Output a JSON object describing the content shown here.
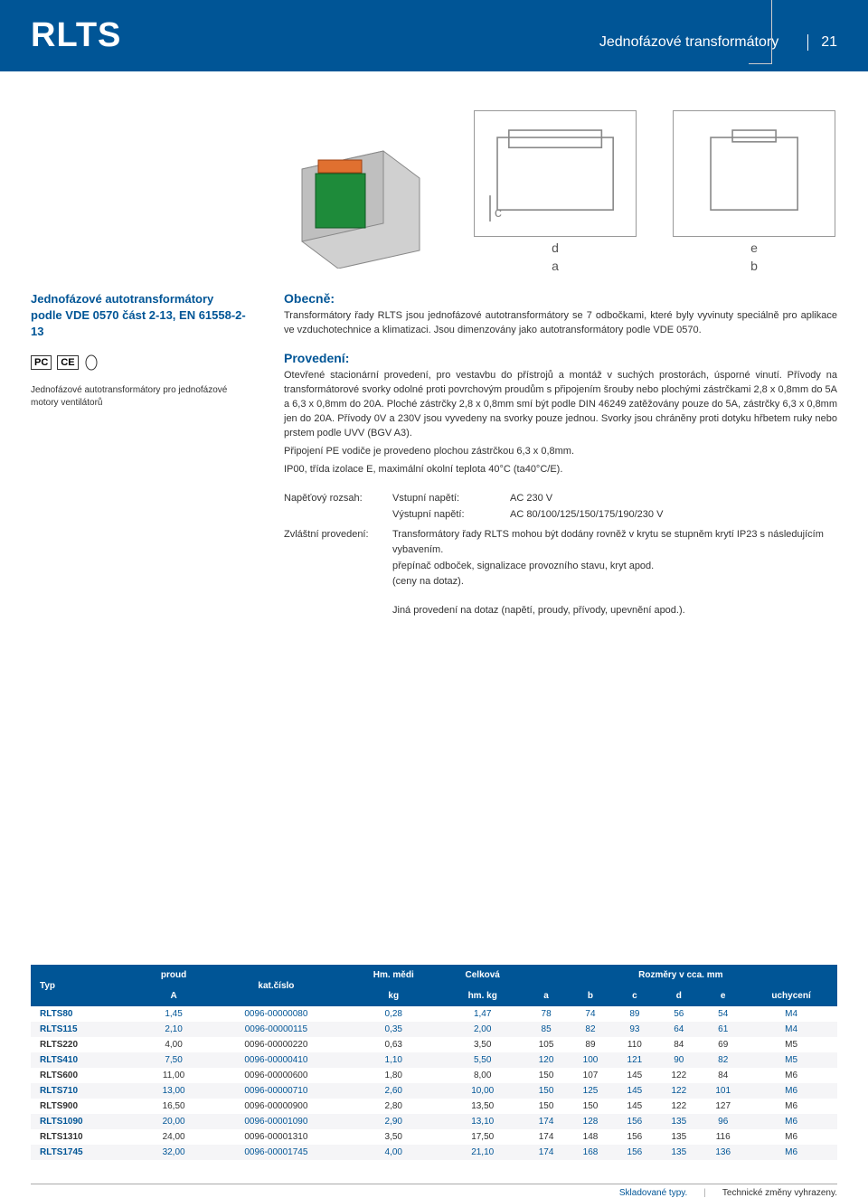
{
  "header": {
    "title": "RLTS",
    "subtitle": "Jednofázové transformátory",
    "pagenum": "21"
  },
  "left": {
    "title_line1": "Jednofázové autotransformátory",
    "title_line2": "podle VDE 0570 část 2-13, EN 61558-2-13",
    "cert_labels": [
      "PC",
      "CE"
    ],
    "desc": "Jednofázové autotransformátory pro jednofázové motory ventilátorů"
  },
  "diagram": {
    "labels_ab": [
      "d",
      "a"
    ],
    "labels_eb": [
      "e",
      "b"
    ]
  },
  "body": {
    "general_head": "Obecně:",
    "general_text": "Transformátory řady RLTS jsou jednofázové autotransformátory se 7 odbočkami, které byly vyvinuty speciálně pro aplikace ve vzduchotechnice a klimatizaci. Jsou dimenzovány jako autotransformátory podle VDE 0570.",
    "design_head": "Provedení:",
    "design_text": "Otevřené stacionární provedení, pro vestavbu do přístrojů a montáž v suchých prostorách, úsporné vinutí. Přívody na transformátorové svorky odolné proti povrchovým proudům s připojením šrouby nebo plochými zástrčkami 2,8 x 0,8mm do 5A a 6,3 x 0,8mm do 20A. Ploché zástrčky 2,8 x 0,8mm smí být podle DIN 46249 zatěžovány pouze do 5A, zástrčky 6,3 x 0,8mm jen do 20A. Přívody 0V a 230V jsou vyvedeny na svorky pouze jednou. Svorky jsou chráněny proti dotyku hřbetem ruky nebo prstem podle UVV (BGV A3).",
    "pe_text": "Připojení PE vodiče je provedeno plochou zástrčkou 6,3 x 0,8mm.",
    "ip_text": "IP00, třída izolace E, maximální okolní teplota 40°C (ta40°C/E).",
    "voltage_range_label": "Napěťový rozsah:",
    "input_label": "Vstupní napětí:",
    "input_value": "AC 230 V",
    "output_label": "Výstupní napětí:",
    "output_value": "AC 80/100/125/150/175/190/230 V",
    "special_label": "Zvláštní provedení:",
    "special_text": "Transformátory řady RLTS mohou být dodány rovněž v krytu se stupněm krytí IP23 s následujícím vybavením.",
    "special_text2": "přepínač odboček, signalizace provozního stavu, kryt apod.",
    "special_text3": "(ceny na dotaz).",
    "other_text": "Jiná provedení na dotaz (napětí, proudy, přívody, upevnění apod.)."
  },
  "table": {
    "headers": {
      "typ": "Typ",
      "proud": "proud",
      "proud_unit": "A",
      "kat": "kat.číslo",
      "medi": "Hm. mědi",
      "medi_unit": "kg",
      "celkova": "Celková",
      "celkova_unit": "hm. kg",
      "rozmery": "Rozměry v cca. mm",
      "a": "a",
      "b": "b",
      "c": "c",
      "d": "d",
      "e": "e",
      "uchyceni": "uchycení"
    },
    "rows": [
      {
        "typ": "RLTS80",
        "proud": "1,45",
        "kat": "0096-00000080",
        "medi": "0,28",
        "hm": "1,47",
        "a": "78",
        "b": "74",
        "c": "89",
        "d": "56",
        "e": "54",
        "u": "M4",
        "blue": true
      },
      {
        "typ": "RLTS115",
        "proud": "2,10",
        "kat": "0096-00000115",
        "medi": "0,35",
        "hm": "2,00",
        "a": "85",
        "b": "82",
        "c": "93",
        "d": "64",
        "e": "61",
        "u": "M4",
        "blue": true
      },
      {
        "typ": "RLTS220",
        "proud": "4,00",
        "kat": "0096-00000220",
        "medi": "0,63",
        "hm": "3,50",
        "a": "105",
        "b": "89",
        "c": "110",
        "d": "84",
        "e": "69",
        "u": "M5",
        "blue": false
      },
      {
        "typ": "RLTS410",
        "proud": "7,50",
        "kat": "0096-00000410",
        "medi": "1,10",
        "hm": "5,50",
        "a": "120",
        "b": "100",
        "c": "121",
        "d": "90",
        "e": "82",
        "u": "M5",
        "blue": true
      },
      {
        "typ": "RLTS600",
        "proud": "11,00",
        "kat": "0096-00000600",
        "medi": "1,80",
        "hm": "8,00",
        "a": "150",
        "b": "107",
        "c": "145",
        "d": "122",
        "e": "84",
        "u": "M6",
        "blue": false
      },
      {
        "typ": "RLTS710",
        "proud": "13,00",
        "kat": "0096-00000710",
        "medi": "2,60",
        "hm": "10,00",
        "a": "150",
        "b": "125",
        "c": "145",
        "d": "122",
        "e": "101",
        "u": "M6",
        "blue": true
      },
      {
        "typ": "RLTS900",
        "proud": "16,50",
        "kat": "0096-00000900",
        "medi": "2,80",
        "hm": "13,50",
        "a": "150",
        "b": "150",
        "c": "145",
        "d": "122",
        "e": "127",
        "u": "M6",
        "blue": false
      },
      {
        "typ": "RLTS1090",
        "proud": "20,00",
        "kat": "0096-00001090",
        "medi": "2,90",
        "hm": "13,10",
        "a": "174",
        "b": "128",
        "c": "156",
        "d": "135",
        "e": "96",
        "u": "M6",
        "blue": true
      },
      {
        "typ": "RLTS1310",
        "proud": "24,00",
        "kat": "0096-00001310",
        "medi": "3,50",
        "hm": "17,50",
        "a": "174",
        "b": "148",
        "c": "156",
        "d": "135",
        "e": "116",
        "u": "M6",
        "blue": false
      },
      {
        "typ": "RLTS1745",
        "proud": "32,00",
        "kat": "0096-00001745",
        "medi": "4,00",
        "hm": "21,10",
        "a": "174",
        "b": "168",
        "c": "156",
        "d": "135",
        "e": "136",
        "u": "M6",
        "blue": true
      }
    ]
  },
  "footer": {
    "stock": "Skladované typy.",
    "tech": "Technické změny vyhrazeny."
  }
}
